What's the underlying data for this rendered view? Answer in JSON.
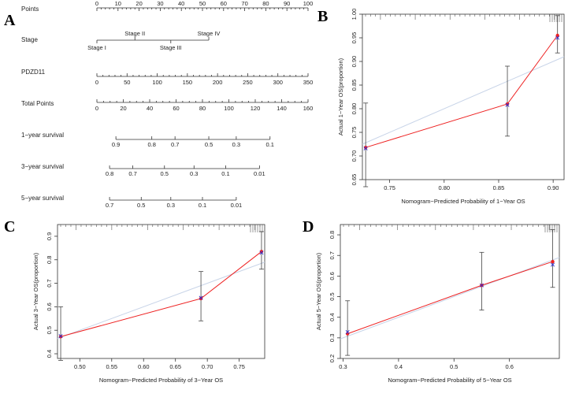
{
  "panels": {
    "A": "A",
    "B": "B",
    "C": "C",
    "D": "D"
  },
  "nomogram": {
    "rows": [
      {
        "label": "Points",
        "ticks": [
          "0",
          "10",
          "20",
          "30",
          "40",
          "50",
          "60",
          "70",
          "80",
          "90",
          "100"
        ],
        "values": [
          0,
          10,
          20,
          30,
          40,
          50,
          60,
          70,
          80,
          90,
          100
        ],
        "min": 0,
        "max": 100
      },
      {
        "label": "Stage",
        "categories": [
          {
            "text": "Stage I",
            "value": 0,
            "side": "below"
          },
          {
            "text": "Stage II",
            "value": 18,
            "side": "above"
          },
          {
            "text": "Stage III",
            "value": 35,
            "side": "below"
          },
          {
            "text": "Stage IV",
            "value": 53,
            "side": "above"
          }
        ]
      },
      {
        "label": "PDZD11",
        "ticks": [
          "0",
          "50",
          "100",
          "150",
          "200",
          "250",
          "300",
          "350"
        ],
        "values": [
          0,
          50,
          100,
          150,
          200,
          250,
          300,
          350
        ],
        "min": 0,
        "max": 350
      },
      {
        "label": "Total Points",
        "ticks": [
          "0",
          "20",
          "40",
          "60",
          "80",
          "100",
          "120",
          "140",
          "160"
        ],
        "values": [
          0,
          20,
          40,
          60,
          80,
          100,
          120,
          140,
          160
        ],
        "min": 0,
        "max": 160
      },
      {
        "label": "1−year survival",
        "ticks": [
          "0.9",
          "0.8",
          "0.7",
          "0.5",
          "0.3",
          "0.1"
        ],
        "positions": [
          0.09,
          0.26,
          0.37,
          0.53,
          0.66,
          0.82
        ]
      },
      {
        "label": "3−year survival",
        "ticks": [
          "0.8",
          "0.7",
          "0.5",
          "0.3",
          "0.1",
          "0.01"
        ],
        "positions": [
          0.06,
          0.17,
          0.32,
          0.46,
          0.61,
          0.77
        ]
      },
      {
        "label": "5−year survival",
        "ticks": [
          "0.7",
          "0.5",
          "0.3",
          "0.1",
          "0.01"
        ],
        "positions": [
          0.06,
          0.21,
          0.35,
          0.5,
          0.66
        ]
      }
    ]
  },
  "chart_data": [
    {
      "type": "line",
      "panel": "B",
      "xlabel": "Nomogram−Predicted Probability of 1−Year OS",
      "ylabel": "Actual 1−Year OS(proportion)",
      "xlim": [
        0.725,
        0.91
      ],
      "ylim": [
        0.65,
        1.0
      ],
      "xticks": [
        0.75,
        0.8,
        0.85,
        0.9
      ],
      "xticklabels": [
        "0.75",
        "0.80",
        "0.85",
        "0.90"
      ],
      "yticks": [
        0.65,
        0.7,
        0.75,
        0.8,
        0.85,
        0.9,
        0.95,
        1.0
      ],
      "yticklabels": [
        "0.65",
        "0.70",
        "0.75",
        "0.80",
        "0.85",
        "0.90",
        "0.95",
        "1.00"
      ],
      "points": [
        {
          "x": 0.728,
          "y": 0.718,
          "lo": 0.635,
          "hi": 0.812,
          "xhat": 0.728,
          "yhat": 0.716
        },
        {
          "x": 0.858,
          "y": 0.81,
          "lo": 0.742,
          "hi": 0.89,
          "xhat": 0.858,
          "yhat": 0.808
        },
        {
          "x": 0.904,
          "y": 0.955,
          "lo": 0.918,
          "hi": 0.997,
          "xhat": 0.904,
          "yhat": 0.95
        }
      ]
    },
    {
      "type": "line",
      "panel": "C",
      "xlabel": "Nomogram−Predicted Probability of 3−Year OS",
      "ylabel": "Actual 3−Year OS(proportion)",
      "xlim": [
        0.465,
        0.79
      ],
      "ylim": [
        0.38,
        0.95
      ],
      "xticks": [
        0.5,
        0.55,
        0.6,
        0.65,
        0.7,
        0.75
      ],
      "xticklabels": [
        "0.50",
        "0.55",
        "0.60",
        "0.65",
        "0.70",
        "0.75"
      ],
      "yticks": [
        0.4,
        0.5,
        0.6,
        0.7,
        0.8,
        0.9
      ],
      "yticklabels": [
        "0.4",
        "0.5",
        "0.6",
        "0.7",
        "0.8",
        "0.9"
      ],
      "points": [
        {
          "x": 0.47,
          "y": 0.473,
          "lo": 0.372,
          "hi": 0.6,
          "xhat": 0.47,
          "yhat": 0.475
        },
        {
          "x": 0.69,
          "y": 0.635,
          "lo": 0.54,
          "hi": 0.75,
          "xhat": 0.69,
          "yhat": 0.638
        },
        {
          "x": 0.785,
          "y": 0.835,
          "lo": 0.76,
          "hi": 0.92,
          "xhat": 0.785,
          "yhat": 0.83
        }
      ]
    },
    {
      "type": "line",
      "panel": "D",
      "xlabel": "Nomogram−Predicted Probability of 5−Year OS",
      "ylabel": "Actual 5−Year OS(proportion)",
      "xlim": [
        0.295,
        0.69
      ],
      "ylim": [
        0.2,
        0.85
      ],
      "xticks": [
        0.3,
        0.4,
        0.5,
        0.6
      ],
      "xticklabels": [
        "0.3",
        "0.4",
        "0.5",
        "0.6"
      ],
      "yticks": [
        0.2,
        0.3,
        0.4,
        0.5,
        0.6,
        0.7,
        0.8
      ],
      "yticklabels": [
        "0.2",
        "0.3",
        "0.4",
        "0.5",
        "0.6",
        "0.7",
        "0.8"
      ],
      "points": [
        {
          "x": 0.308,
          "y": 0.32,
          "lo": 0.215,
          "hi": 0.48,
          "xhat": 0.308,
          "yhat": 0.328
        },
        {
          "x": 0.55,
          "y": 0.555,
          "lo": 0.435,
          "hi": 0.715,
          "xhat": 0.55,
          "yhat": 0.555
        },
        {
          "x": 0.678,
          "y": 0.67,
          "lo": 0.545,
          "hi": 0.825,
          "xhat": 0.678,
          "yhat": 0.655
        }
      ]
    }
  ],
  "colors": {
    "calibrated": "#ee2222",
    "ideal": "#c8d4e8",
    "observed": "#2a2ad0",
    "axis": "#333333",
    "errorbar": "#444444"
  }
}
